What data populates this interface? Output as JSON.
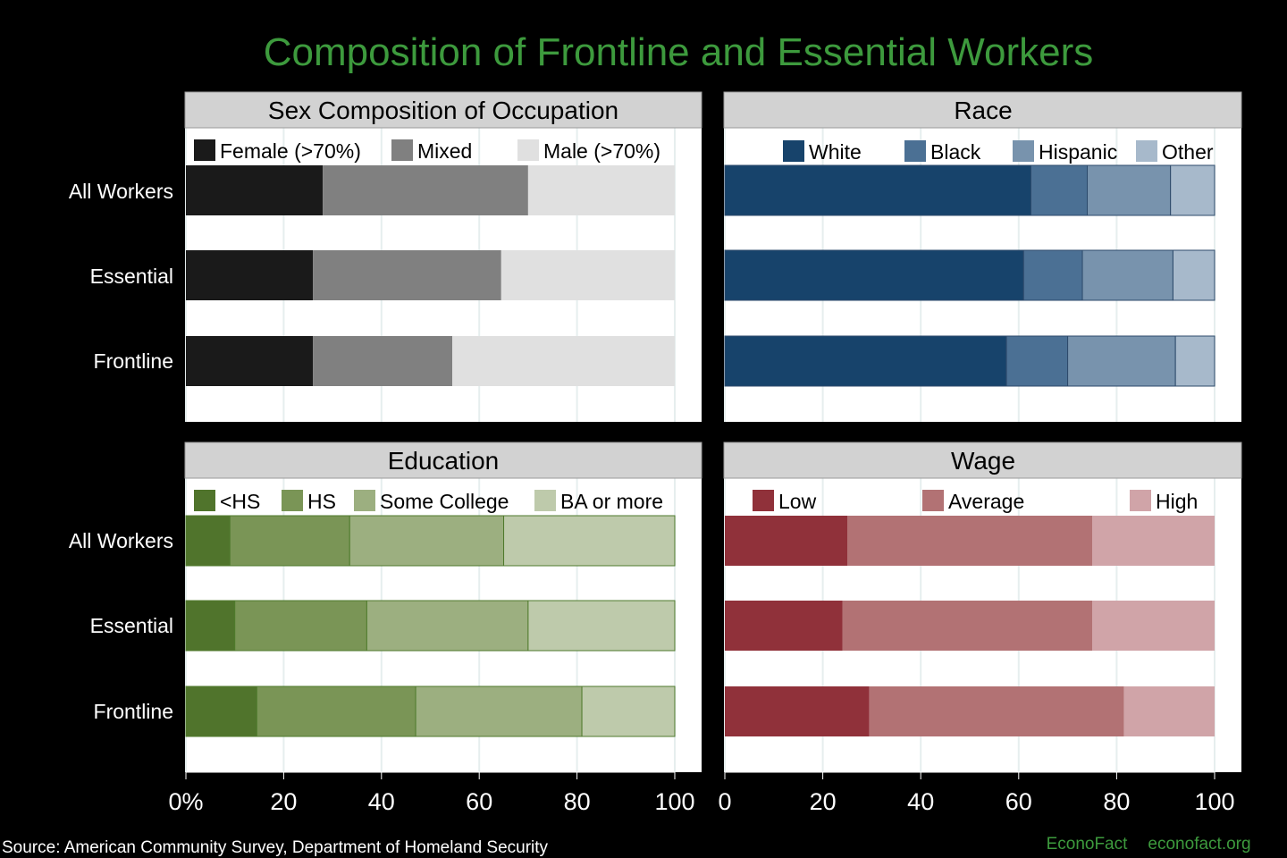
{
  "chart_data": {
    "type": "bar",
    "stacked": true,
    "orientation": "horizontal",
    "title": "Composition of Frontline and Essential Workers",
    "categories": [
      "All Workers",
      "Essential",
      "Frontline"
    ],
    "x_ticks": [
      {
        "label": "0%",
        "value": 0
      },
      {
        "label": "20",
        "value": 20
      },
      {
        "label": "40",
        "value": 40
      },
      {
        "label": "60",
        "value": 60
      },
      {
        "label": "80",
        "value": 80
      },
      {
        "label": "100",
        "value": 100
      }
    ],
    "x_ticks_right": [
      {
        "label": "0",
        "value": 0
      },
      {
        "label": "20",
        "value": 20
      },
      {
        "label": "40",
        "value": 40
      },
      {
        "label": "60",
        "value": 60
      },
      {
        "label": "80",
        "value": 80
      },
      {
        "label": "100",
        "value": 100
      }
    ],
    "xlim": [
      0,
      100
    ],
    "panels": [
      {
        "id": "sex",
        "title": "Sex Composition  of  Occupation",
        "series": [
          {
            "name": "Female (>70%)",
            "color": "#1a1a1a",
            "values": [
              28,
              26,
              26
            ]
          },
          {
            "name": "Mixed",
            "color": "#808080",
            "values": [
              42,
              38.5,
              28.5
            ]
          },
          {
            "name": "Male (>70%)",
            "color": "#e0e0e0",
            "values": [
              30,
              35.5,
              45.5
            ]
          }
        ]
      },
      {
        "id": "race",
        "title": "Race",
        "series": [
          {
            "name": "White",
            "color": "#17436b",
            "values": [
              62.5,
              61,
              57.5
            ]
          },
          {
            "name": "Black",
            "color": "#4b7094",
            "values": [
              11.5,
              12,
              12.5
            ]
          },
          {
            "name": "Hispanic",
            "color": "#7893ad",
            "values": [
              17,
              18.5,
              22
            ]
          },
          {
            "name": "Other",
            "color": "#a7b9cb",
            "values": [
              9,
              8.5,
              8
            ]
          }
        ]
      },
      {
        "id": "education",
        "title": "Education",
        "series": [
          {
            "name": "<HS",
            "color": "#50742c",
            "values": [
              9,
              10,
              14.5
            ]
          },
          {
            "name": "HS",
            "color": "#7a9556",
            "values": [
              24.5,
              27,
              32.5
            ]
          },
          {
            "name": "Some College",
            "color": "#9caf80",
            "values": [
              31.5,
              33,
              34
            ]
          },
          {
            "name": "BA or more",
            "color": "#becaab",
            "values": [
              35,
              30,
              19
            ]
          }
        ]
      },
      {
        "id": "wage",
        "title": "Wage",
        "series": [
          {
            "name": "Low",
            "color": "#90313a",
            "values": [
              25,
              24,
              29.5
            ]
          },
          {
            "name": "Average",
            "color": "#b27274",
            "values": [
              50,
              51,
              52
            ]
          },
          {
            "name": "High",
            "color": "#d0a4a8",
            "values": [
              25,
              25,
              18.5
            ]
          }
        ]
      }
    ],
    "source": "Source: American Community Survey, Department of Homeland Security",
    "brand": "EconoFact",
    "brand_url": "econofact.org"
  }
}
